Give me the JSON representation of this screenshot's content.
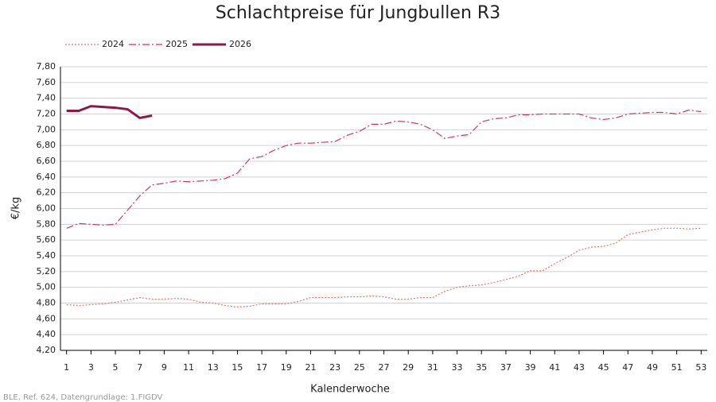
{
  "chart_data": {
    "type": "line",
    "title": "Schlachtpreise für Jungbullen R3",
    "x_label": "Kalenderwoche",
    "y_label": "€/kg",
    "source": "BLE, Ref. 624, Datengrundlage: 1.FIGDV",
    "x": [
      1,
      2,
      3,
      4,
      5,
      6,
      7,
      8,
      9,
      10,
      11,
      12,
      13,
      14,
      15,
      16,
      17,
      18,
      19,
      20,
      21,
      22,
      23,
      24,
      25,
      26,
      27,
      28,
      29,
      30,
      31,
      32,
      33,
      34,
      35,
      36,
      37,
      38,
      39,
      40,
      41,
      42,
      43,
      44,
      45,
      46,
      47,
      48,
      49,
      50,
      51,
      52,
      53
    ],
    "xlim": [
      0.5,
      53.5
    ],
    "xticks": [
      1,
      3,
      5,
      7,
      9,
      11,
      13,
      15,
      17,
      19,
      21,
      23,
      25,
      27,
      29,
      31,
      33,
      35,
      37,
      39,
      41,
      43,
      45,
      47,
      49,
      51,
      53
    ],
    "ylim": [
      4.2,
      7.8
    ],
    "yticks": [
      {
        "value": 4.2,
        "label": "4,20"
      },
      {
        "value": 4.4,
        "label": "4,40"
      },
      {
        "value": 4.6,
        "label": "4,60"
      },
      {
        "value": 4.8,
        "label": "4,80"
      },
      {
        "value": 5.0,
        "label": "5,00"
      },
      {
        "value": 5.2,
        "label": "5,20"
      },
      {
        "value": 5.4,
        "label": "5,40"
      },
      {
        "value": 5.6,
        "label": "5,60"
      },
      {
        "value": 5.8,
        "label": "5,80"
      },
      {
        "value": 6.0,
        "label": "6,00"
      },
      {
        "value": 6.2,
        "label": "6,20"
      },
      {
        "value": 6.4,
        "label": "6,40"
      },
      {
        "value": 6.6,
        "label": "6,60"
      },
      {
        "value": 6.8,
        "label": "6,80"
      },
      {
        "value": 7.0,
        "label": "7,00"
      },
      {
        "value": 7.2,
        "label": "7,20"
      },
      {
        "value": 7.4,
        "label": "7,40"
      },
      {
        "value": 7.6,
        "label": "7,60"
      },
      {
        "value": 7.8,
        "label": "7,80"
      }
    ],
    "grid": true,
    "legend": "top-left",
    "series": [
      {
        "name": "2024",
        "color": "#e8746a",
        "linestyle": "dotted",
        "width": 1.2,
        "values": [
          4.78,
          4.77,
          4.78,
          4.79,
          4.81,
          4.84,
          4.87,
          4.85,
          4.85,
          4.86,
          4.85,
          4.81,
          4.8,
          4.77,
          4.75,
          4.76,
          4.79,
          4.79,
          4.79,
          4.82,
          4.87,
          4.87,
          4.87,
          4.88,
          4.88,
          4.89,
          4.88,
          4.85,
          4.85,
          4.87,
          4.87,
          4.95,
          5.0,
          5.02,
          5.03,
          5.06,
          5.1,
          5.14,
          5.21,
          5.21,
          5.3,
          5.38,
          5.47,
          5.51,
          5.52,
          5.56,
          5.67,
          5.7,
          5.73,
          5.75,
          5.75,
          5.74,
          5.75
        ]
      },
      {
        "name": "2025",
        "color": "#c8366b",
        "linestyle": "dashdot",
        "width": 1.2,
        "values": [
          5.75,
          5.81,
          5.8,
          5.79,
          5.8,
          5.98,
          6.16,
          6.3,
          6.32,
          6.35,
          6.34,
          6.35,
          6.36,
          6.38,
          6.45,
          6.63,
          6.66,
          6.74,
          6.8,
          6.83,
          6.83,
          6.84,
          6.85,
          6.93,
          6.98,
          7.07,
          7.07,
          7.11,
          7.1,
          7.07,
          7.0,
          6.89,
          6.92,
          6.94,
          7.1,
          7.14,
          7.15,
          7.19,
          7.19,
          7.2,
          7.2,
          7.2,
          7.2,
          7.15,
          7.13,
          7.15,
          7.2,
          7.21,
          7.22,
          7.22,
          7.2,
          7.25,
          7.23
        ]
      },
      {
        "name": "2026",
        "color": "#8b1a4a",
        "linestyle": "solid",
        "width": 3,
        "values": [
          7.24,
          7.24,
          7.3,
          7.29,
          7.28,
          7.26,
          7.15,
          7.18,
          null,
          null,
          null,
          null,
          null,
          null,
          null,
          null,
          null,
          null,
          null,
          null,
          null,
          null,
          null,
          null,
          null,
          null,
          null,
          null,
          null,
          null,
          null,
          null,
          null,
          null,
          null,
          null,
          null,
          null,
          null,
          null,
          null,
          null,
          null,
          null,
          null,
          null,
          null,
          null,
          null,
          null,
          null,
          null,
          null
        ]
      }
    ]
  }
}
